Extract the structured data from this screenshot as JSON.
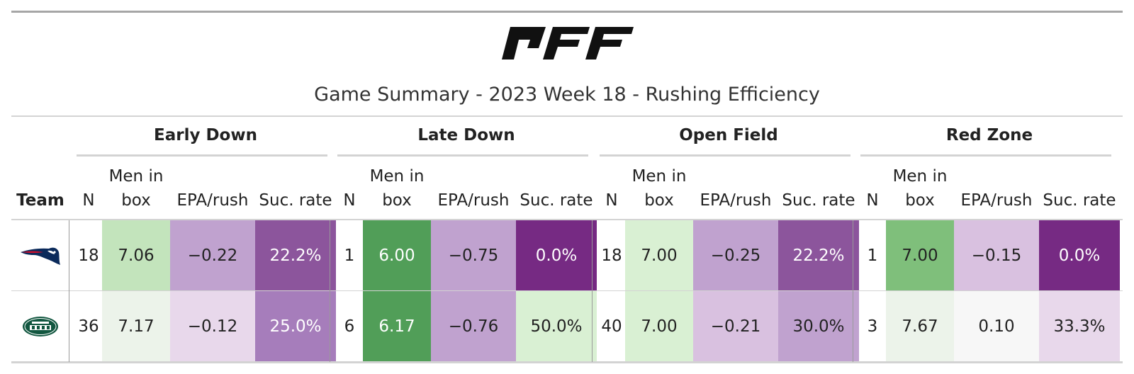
{
  "logo_text": "PFF",
  "title": "Game Summary - 2023 Week 18 - Rushing Efficiency",
  "spanners": [
    "Early Down",
    "Late Down",
    "Open Field",
    "Red Zone"
  ],
  "columns": {
    "team": "Team",
    "n": "N",
    "men_line1": "Men in",
    "men_line2": "box",
    "epa": "EPA/rush",
    "suc": "Suc. rate"
  },
  "colors": {
    "purple_dark": "#762a83",
    "purple_mid": "#8c559c",
    "purple_light": "#a67dbb",
    "purple_pale": "#c0a2cf",
    "purple_faint": "#d9c1e0",
    "purple_ghost": "#e8d8eb",
    "neutral": "#f7f7f7",
    "green_ghost": "#ecf3ea",
    "green_faint": "#d9f0d3",
    "green_pale": "#c3e4bc",
    "green_mid": "#7fbf7b",
    "green_dark": "#519e58"
  },
  "chart_data": {
    "type": "table",
    "title": "Game Summary - 2023 Week 18 - Rushing Efficiency",
    "groups": [
      "Early Down",
      "Late Down",
      "Open Field",
      "Red Zone"
    ],
    "columns": [
      "N",
      "Men in box",
      "EPA/rush",
      "Suc. rate"
    ],
    "rows": [
      {
        "team_logo": "patriots-logo",
        "cells": [
          {
            "n": "18",
            "men": "7.06",
            "epa": "−0.22",
            "suc": "22.2%"
          },
          {
            "n": "1",
            "men": "6.00",
            "epa": "−0.75",
            "suc": "0.0%"
          },
          {
            "n": "18",
            "men": "7.00",
            "epa": "−0.25",
            "suc": "22.2%"
          },
          {
            "n": "1",
            "men": "7.00",
            "epa": "−0.15",
            "suc": "0.0%"
          }
        ],
        "fills": [
          [
            "green_pale",
            "purple_pale",
            "purple_mid"
          ],
          [
            "green_dark",
            "purple_pale",
            "purple_dark"
          ],
          [
            "green_faint",
            "purple_pale",
            "purple_mid"
          ],
          [
            "green_mid",
            "purple_faint",
            "purple_dark"
          ]
        ]
      },
      {
        "team_logo": "jets-logo",
        "cells": [
          {
            "n": "36",
            "men": "7.17",
            "epa": "−0.12",
            "suc": "25.0%"
          },
          {
            "n": "6",
            "men": "6.17",
            "epa": "−0.76",
            "suc": "50.0%"
          },
          {
            "n": "40",
            "men": "7.00",
            "epa": "−0.21",
            "suc": "30.0%"
          },
          {
            "n": "3",
            "men": "7.67",
            "epa": "0.10",
            "suc": "33.3%"
          }
        ],
        "fills": [
          [
            "green_ghost",
            "purple_ghost",
            "purple_light"
          ],
          [
            "green_dark",
            "purple_pale",
            "green_faint"
          ],
          [
            "green_faint",
            "purple_faint",
            "purple_pale"
          ],
          [
            "green_ghost",
            "neutral",
            "purple_ghost"
          ]
        ]
      }
    ]
  }
}
